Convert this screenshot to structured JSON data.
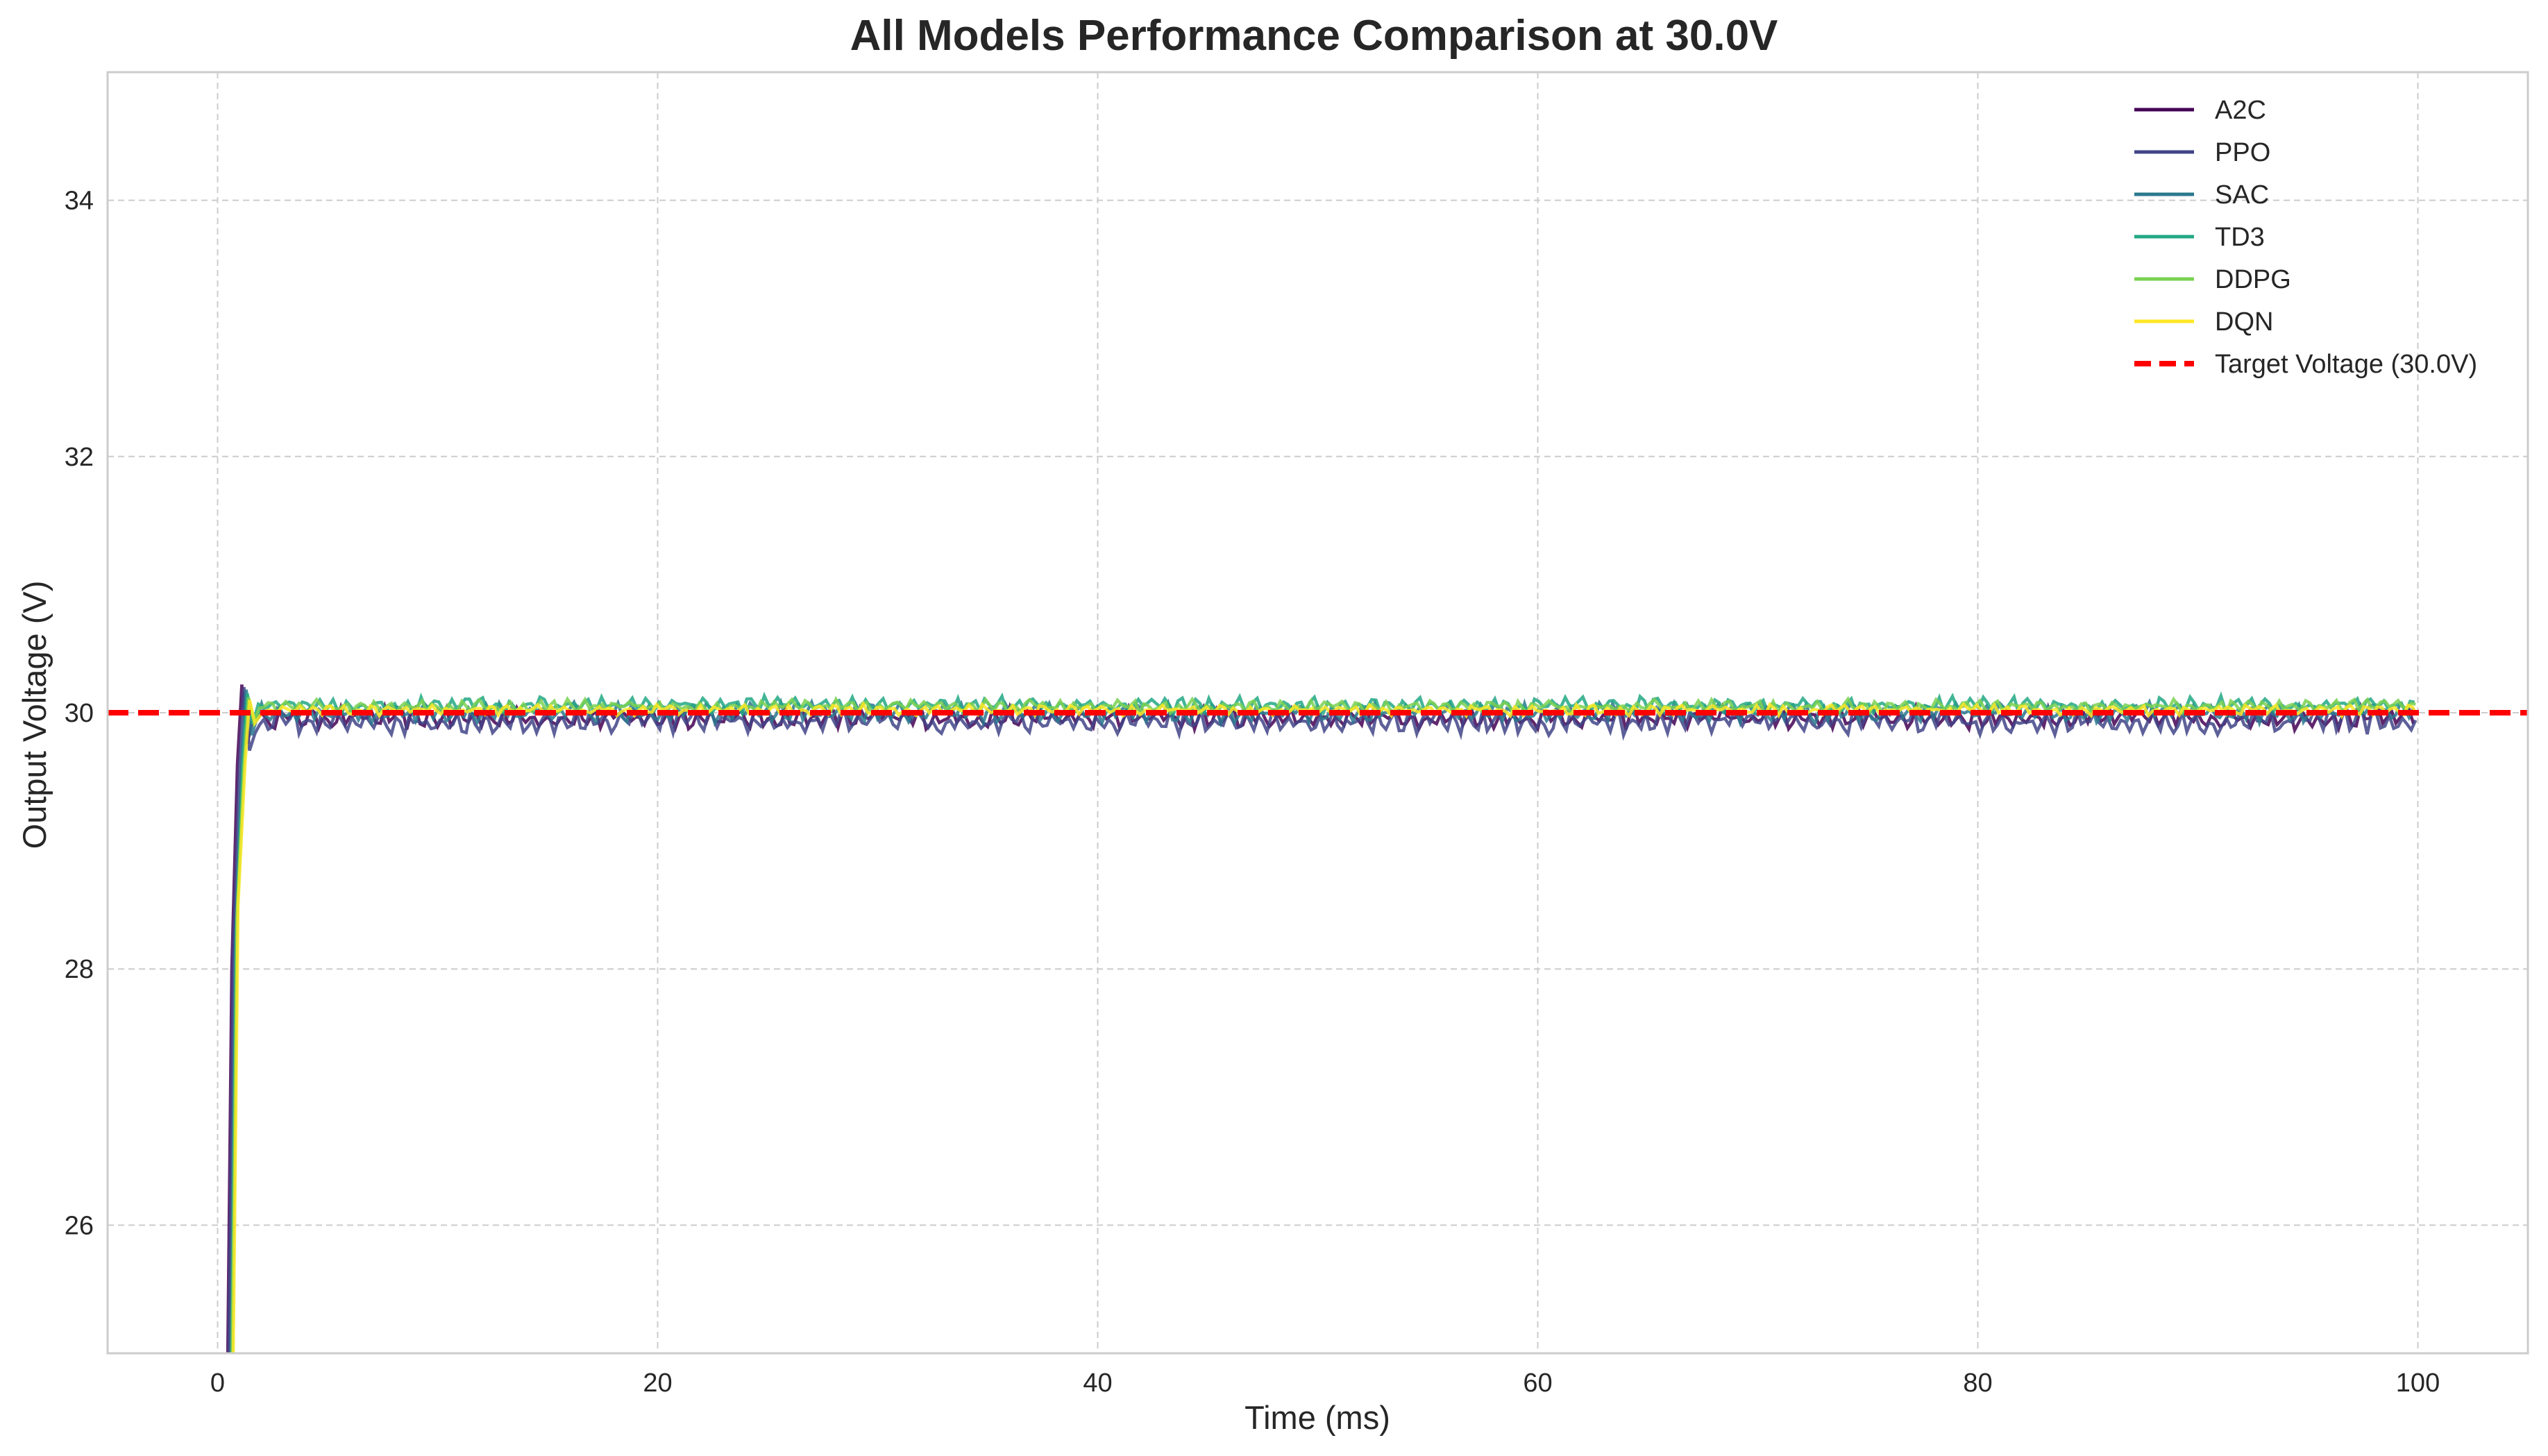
{
  "chart_data": {
    "type": "line",
    "title": "All Models Performance Comparison at 30.0V",
    "xlabel": "Time (ms)",
    "ylabel": "Output Voltage (V)",
    "xlim": [
      -5,
      105
    ],
    "ylim": [
      25,
      35
    ],
    "xticks": [
      0,
      20,
      40,
      60,
      80,
      100
    ],
    "yticks": [
      26,
      28,
      30,
      32,
      34
    ],
    "grid": true,
    "legend_position": "top-right",
    "target": {
      "name": "Target Voltage (30.0V)",
      "value": 30.0,
      "color": "#ff0000",
      "style": "dashed"
    },
    "series": [
      {
        "name": "A2C",
        "color": "#440154",
        "start": 0.4,
        "rise_end": 1.1,
        "peak": 30.22,
        "mean": 29.96,
        "ripple": 0.08
      },
      {
        "name": "PPO",
        "color": "#414487",
        "start": 0.45,
        "rise_end": 1.2,
        "peak": 30.2,
        "mean": 29.93,
        "ripple": 0.09
      },
      {
        "name": "SAC",
        "color": "#2a788e",
        "start": 0.55,
        "rise_end": 1.3,
        "peak": 30.18,
        "mean": 30.0,
        "ripple": 0.07
      },
      {
        "name": "TD3",
        "color": "#22a884",
        "start": 0.6,
        "rise_end": 1.35,
        "peak": 30.15,
        "mean": 30.06,
        "ripple": 0.06
      },
      {
        "name": "DDPG",
        "color": "#7ad151",
        "start": 0.6,
        "rise_end": 1.4,
        "peak": 30.12,
        "mean": 30.05,
        "ripple": 0.05
      },
      {
        "name": "DQN",
        "color": "#fde725",
        "start": 0.65,
        "rise_end": 1.45,
        "peak": 30.1,
        "mean": 30.02,
        "ripple": 0.04
      }
    ]
  }
}
